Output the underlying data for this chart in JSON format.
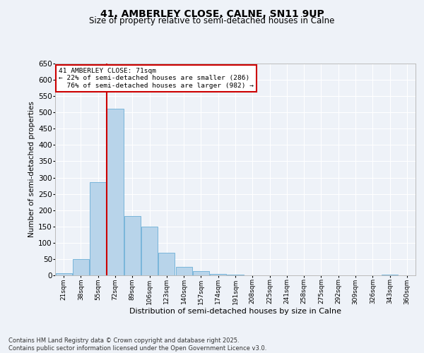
{
  "title": "41, AMBERLEY CLOSE, CALNE, SN11 9UP",
  "subtitle": "Size of property relative to semi-detached houses in Calne",
  "xlabel": "Distribution of semi-detached houses by size in Calne",
  "ylabel": "Number of semi-detached properties",
  "footnote": "Contains HM Land Registry data © Crown copyright and database right 2025.\nContains public sector information licensed under the Open Government Licence v3.0.",
  "bins": [
    "21sqm",
    "38sqm",
    "55sqm",
    "72sqm",
    "89sqm",
    "106sqm",
    "123sqm",
    "140sqm",
    "157sqm",
    "174sqm",
    "191sqm",
    "208sqm",
    "225sqm",
    "241sqm",
    "258sqm",
    "275sqm",
    "292sqm",
    "309sqm",
    "326sqm",
    "343sqm",
    "360sqm"
  ],
  "values": [
    6,
    50,
    286,
    511,
    182,
    150,
    70,
    27,
    12,
    5,
    3,
    0,
    0,
    0,
    0,
    0,
    0,
    0,
    0,
    3,
    0
  ],
  "bar_color": "#b8d4ea",
  "bar_edge_color": "#6aaed6",
  "vline_color": "#cc0000",
  "ylim": [
    0,
    650
  ],
  "yticks": [
    0,
    50,
    100,
    150,
    200,
    250,
    300,
    350,
    400,
    450,
    500,
    550,
    600,
    650
  ],
  "pct_smaller": 22,
  "n_smaller": 286,
  "pct_larger": 76,
  "n_larger": 982,
  "annotation_label": "41 AMBERLEY CLOSE: 71sqm",
  "bg_color": "#eef2f8",
  "grid_color": "#ffffff"
}
